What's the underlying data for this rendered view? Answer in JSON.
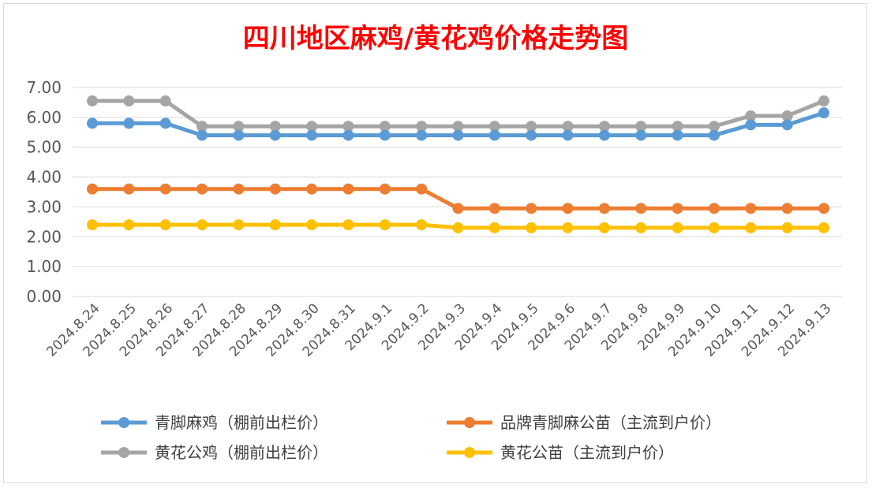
{
  "chart_data": {
    "type": "line",
    "title": "四川地区麻鸡/黄花鸡价格走势图",
    "xlabel": "",
    "ylabel": "",
    "ylim": [
      0,
      7
    ],
    "yticks": [
      "0.00",
      "1.00",
      "2.00",
      "3.00",
      "4.00",
      "5.00",
      "6.00",
      "7.00"
    ],
    "grid": true,
    "legend_position": "bottom",
    "categories": [
      "2024.8.24",
      "2024.8.25",
      "2024.8.26",
      "2024.8.27",
      "2024.8.28",
      "2024.8.29",
      "2024.8.30",
      "2024.8.31",
      "2024.9.1",
      "2024.9.2",
      "2024.9.3",
      "2024.9.4",
      "2024.9.5",
      "2024.9.6",
      "2024.9.7",
      "2024.9.8",
      "2024.9.9",
      "2024.9.10",
      "2024.9.11",
      "2024.9.12",
      "2024.9.13"
    ],
    "series": [
      {
        "name": "青脚麻鸡（棚前出栏价）",
        "color": "#5b9bd5",
        "values": [
          5.8,
          5.8,
          5.8,
          5.4,
          5.4,
          5.4,
          5.4,
          5.4,
          5.4,
          5.4,
          5.4,
          5.4,
          5.4,
          5.4,
          5.4,
          5.4,
          5.4,
          5.4,
          5.75,
          5.75,
          6.15
        ]
      },
      {
        "name": "品牌青脚麻公苗（主流到户价）",
        "color": "#ed7d31",
        "values": [
          3.6,
          3.6,
          3.6,
          3.6,
          3.6,
          3.6,
          3.6,
          3.6,
          3.6,
          3.6,
          2.95,
          2.95,
          2.95,
          2.95,
          2.95,
          2.95,
          2.95,
          2.95,
          2.95,
          2.95,
          2.95
        ]
      },
      {
        "name": "黄花公鸡（棚前出栏价）",
        "color": "#a5a5a5",
        "values": [
          6.55,
          6.55,
          6.55,
          5.7,
          5.7,
          5.7,
          5.7,
          5.7,
          5.7,
          5.7,
          5.7,
          5.7,
          5.7,
          5.7,
          5.7,
          5.7,
          5.7,
          5.7,
          6.05,
          6.05,
          6.55
        ]
      },
      {
        "name": "黄花公苗（主流到户价）",
        "color": "#ffc000",
        "values": [
          2.4,
          2.4,
          2.4,
          2.4,
          2.4,
          2.4,
          2.4,
          2.4,
          2.4,
          2.4,
          2.3,
          2.3,
          2.3,
          2.3,
          2.3,
          2.3,
          2.3,
          2.3,
          2.3,
          2.3,
          2.3
        ]
      }
    ]
  }
}
